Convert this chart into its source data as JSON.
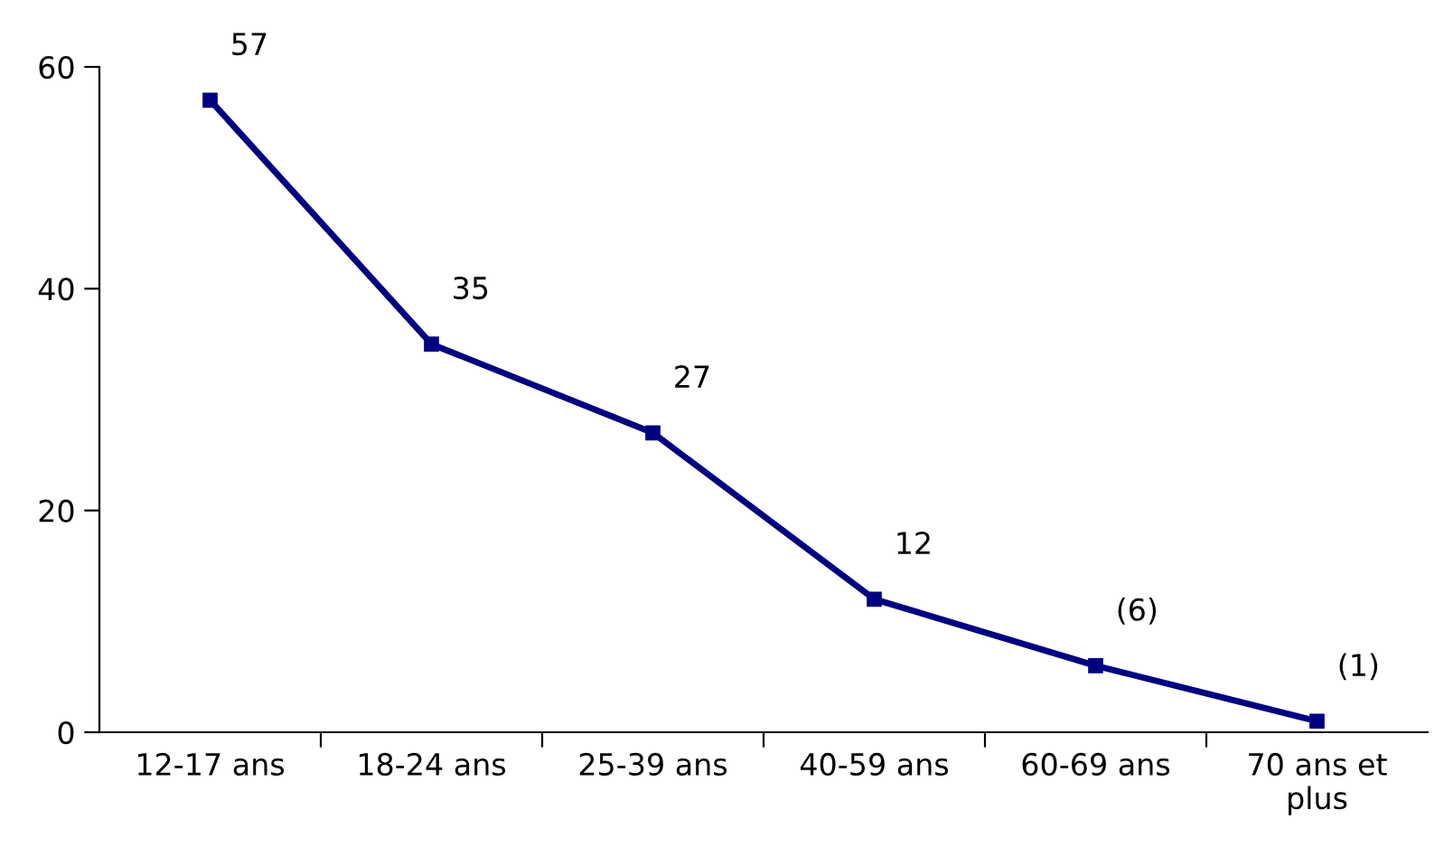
{
  "chart_data": {
    "type": "line",
    "categories": [
      "12-17 ans",
      "18-24 ans",
      "25-39 ans",
      "40-59 ans",
      "60-69 ans",
      "70 ans et\nplus"
    ],
    "series": [
      {
        "color": "#000080",
        "values": [
          57,
          35,
          27,
          12,
          6,
          1
        ],
        "value_labels": [
          "57",
          "35",
          "27",
          "12",
          "(6)",
          "(1)"
        ]
      }
    ],
    "ylim": [
      0,
      60
    ],
    "yticks": [
      0,
      20,
      40,
      60
    ],
    "marker": "square",
    "line_style": "solid"
  }
}
